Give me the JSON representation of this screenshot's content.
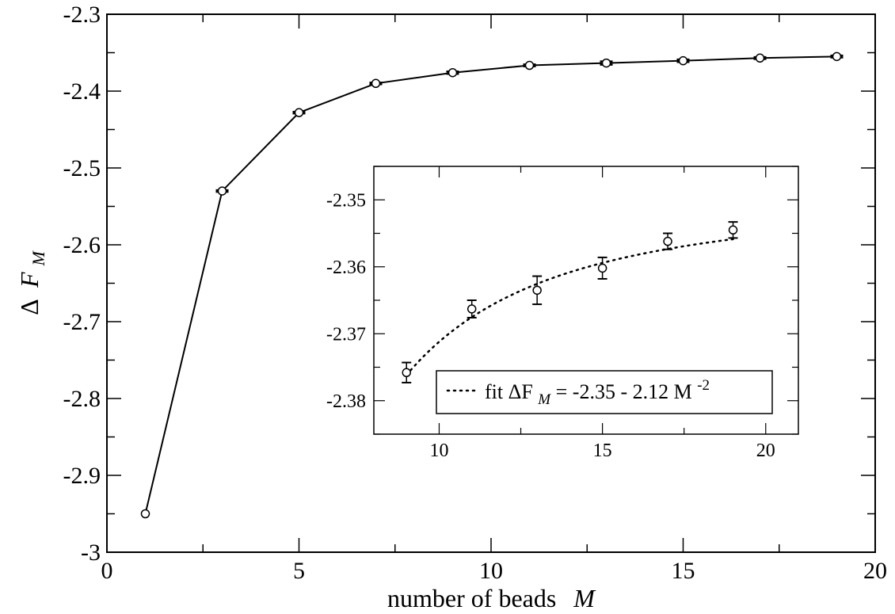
{
  "chart_data": [
    {
      "type": "line",
      "xlabel": "number of beads",
      "xlabel_var": "M",
      "ylabel_sym": "Δ",
      "ylabel_var": "F",
      "ylabel_sub": "M",
      "xlim": [
        0,
        20
      ],
      "ylim": [
        -3,
        -2.3
      ],
      "x_ticks": [
        0,
        5,
        10,
        15,
        20
      ],
      "x_tick_labels": [
        "0",
        "5",
        "10",
        "15",
        "20"
      ],
      "y_ticks": [
        -3,
        -2.9,
        -2.8,
        -2.7,
        -2.6,
        -2.5,
        -2.4,
        -2.3
      ],
      "y_tick_labels": [
        "-3",
        "-2.9",
        "-2.8",
        "-2.7",
        "-2.6",
        "-2.5",
        "-2.4",
        "-2.3"
      ],
      "grid": false,
      "series": [
        {
          "x": [
            1,
            3,
            5,
            7,
            9,
            11,
            13,
            15,
            17,
            19
          ],
          "y": [
            -2.95,
            -2.53,
            -2.428,
            -2.39,
            -2.376,
            -2.3665,
            -2.3635,
            -2.3605,
            -2.357,
            -2.355
          ],
          "yerr": [
            0,
            0.001,
            0.001,
            0.001,
            0.0015,
            0.0012,
            0.0021,
            0.0016,
            0.0012,
            0.0012
          ],
          "marker": "circle",
          "color": "#000000"
        }
      ]
    },
    {
      "type": "scatter",
      "xlim": [
        8,
        21
      ],
      "ylim": [
        -2.385,
        -2.345
      ],
      "x_ticks": [
        10,
        15,
        20
      ],
      "x_tick_labels": [
        "10",
        "15",
        "20"
      ],
      "y_ticks": [
        -2.38,
        -2.37,
        -2.36,
        -2.35
      ],
      "y_tick_labels": [
        "-2.38",
        "-2.37",
        "-2.36",
        "-2.35"
      ],
      "grid": false,
      "legend_position": "bottom-right",
      "legend": {
        "prefix": "fit ΔF",
        "sub": "M",
        "middle": " = -2.35 - 2.12 M",
        "sup": "-2"
      },
      "series": [
        {
          "x": [
            9,
            11,
            13,
            15,
            17,
            19
          ],
          "y": [
            -2.3758,
            -2.3663,
            -2.3635,
            -2.3602,
            -2.3562,
            -2.3545
          ],
          "yerr": [
            0.0015,
            0.0013,
            0.0021,
            0.0016,
            0.0012,
            0.0012
          ],
          "marker": "circle",
          "color": "#000000"
        }
      ],
      "fit": {
        "a": -2.35,
        "b": -2.12,
        "x_range": [
          9,
          19
        ],
        "style": "dotted"
      }
    }
  ]
}
